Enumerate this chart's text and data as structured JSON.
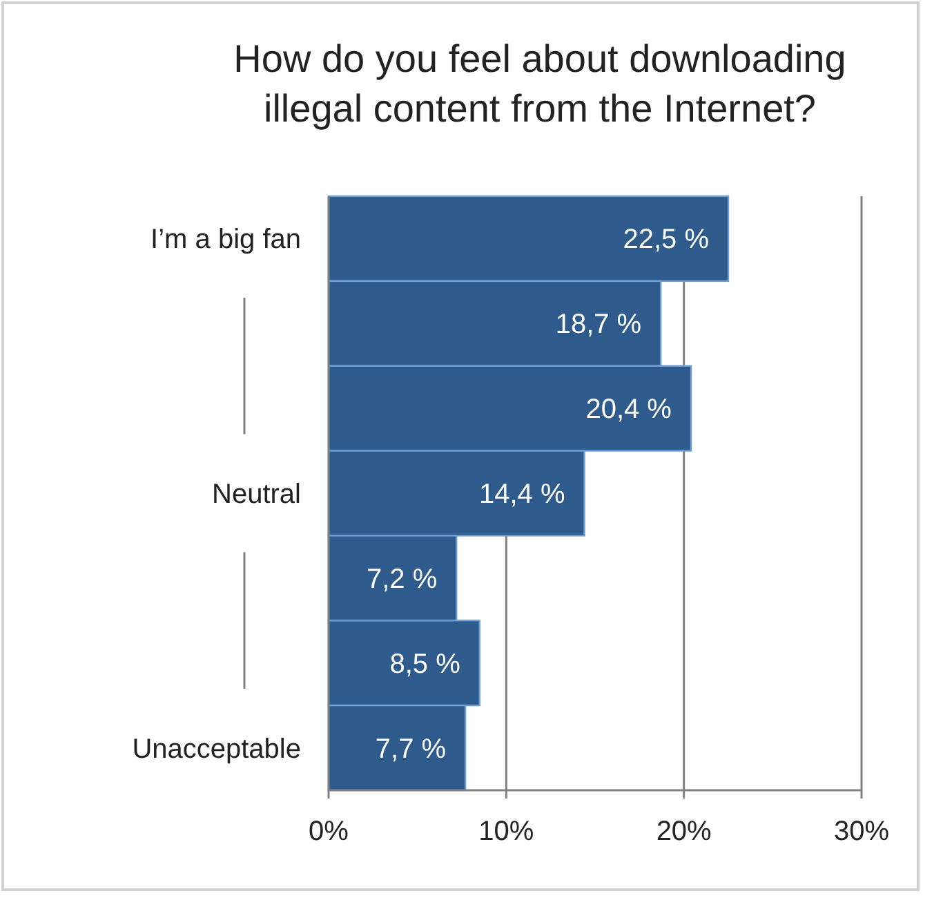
{
  "chart_data": {
    "type": "bar",
    "orientation": "horizontal",
    "title": "How do you feel about downloading illegal content from the Internet?",
    "categories": [
      "I’m a big fan",
      null,
      null,
      "Neutral",
      null,
      null,
      "Unacceptable"
    ],
    "values": [
      22.5,
      18.7,
      20.4,
      14.4,
      7.2,
      8.5,
      7.7
    ],
    "value_labels": [
      "22,5 %",
      "18,7 %",
      "20,4 %",
      "14,4 %",
      "7,2 %",
      "8,5 %",
      "7,7 %"
    ],
    "color": "#2e5b8c",
    "xlim": [
      0,
      30
    ],
    "xticks": [
      {
        "value": 0,
        "label": "0%"
      },
      {
        "value": 10,
        "label": "10%"
      },
      {
        "value": 20,
        "label": "20%"
      },
      {
        "value": 30,
        "label": "30%"
      }
    ],
    "grid": "x"
  }
}
